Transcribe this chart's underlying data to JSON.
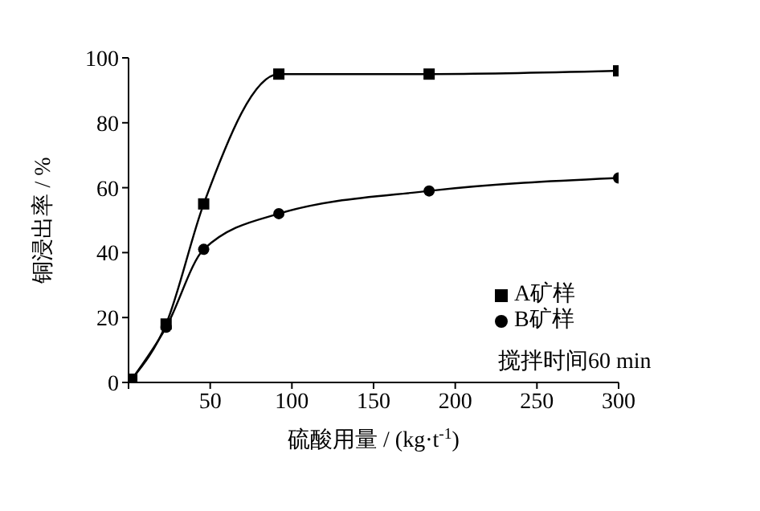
{
  "chart_data": {
    "type": "line",
    "xlabel": "硫酸用量 / (kg·t$^{-1}$)",
    "ylabel": "铜浸出率 / %",
    "x": [
      2,
      23,
      46,
      92,
      184,
      300
    ],
    "series": [
      {
        "name": "A矿样",
        "color": "#000000",
        "marker": "square",
        "values": [
          1,
          18,
          55,
          95,
          95,
          96
        ]
      },
      {
        "name": "B矿样",
        "color": "#000000",
        "marker": "circle",
        "values": [
          1,
          17,
          41,
          52,
          59,
          63
        ]
      }
    ],
    "xlim": [
      0,
      300
    ],
    "xticks": [
      {
        "value": 0,
        "label": null
      },
      50,
      100,
      150,
      200,
      250,
      300
    ],
    "ylim": [
      0,
      100
    ],
    "yticks": [
      0,
      20,
      40,
      60,
      80,
      100
    ],
    "grid": false,
    "legend": "bottom right",
    "line_style": "solid",
    "annotations": [
      "搅拌时间60 min"
    ]
  }
}
